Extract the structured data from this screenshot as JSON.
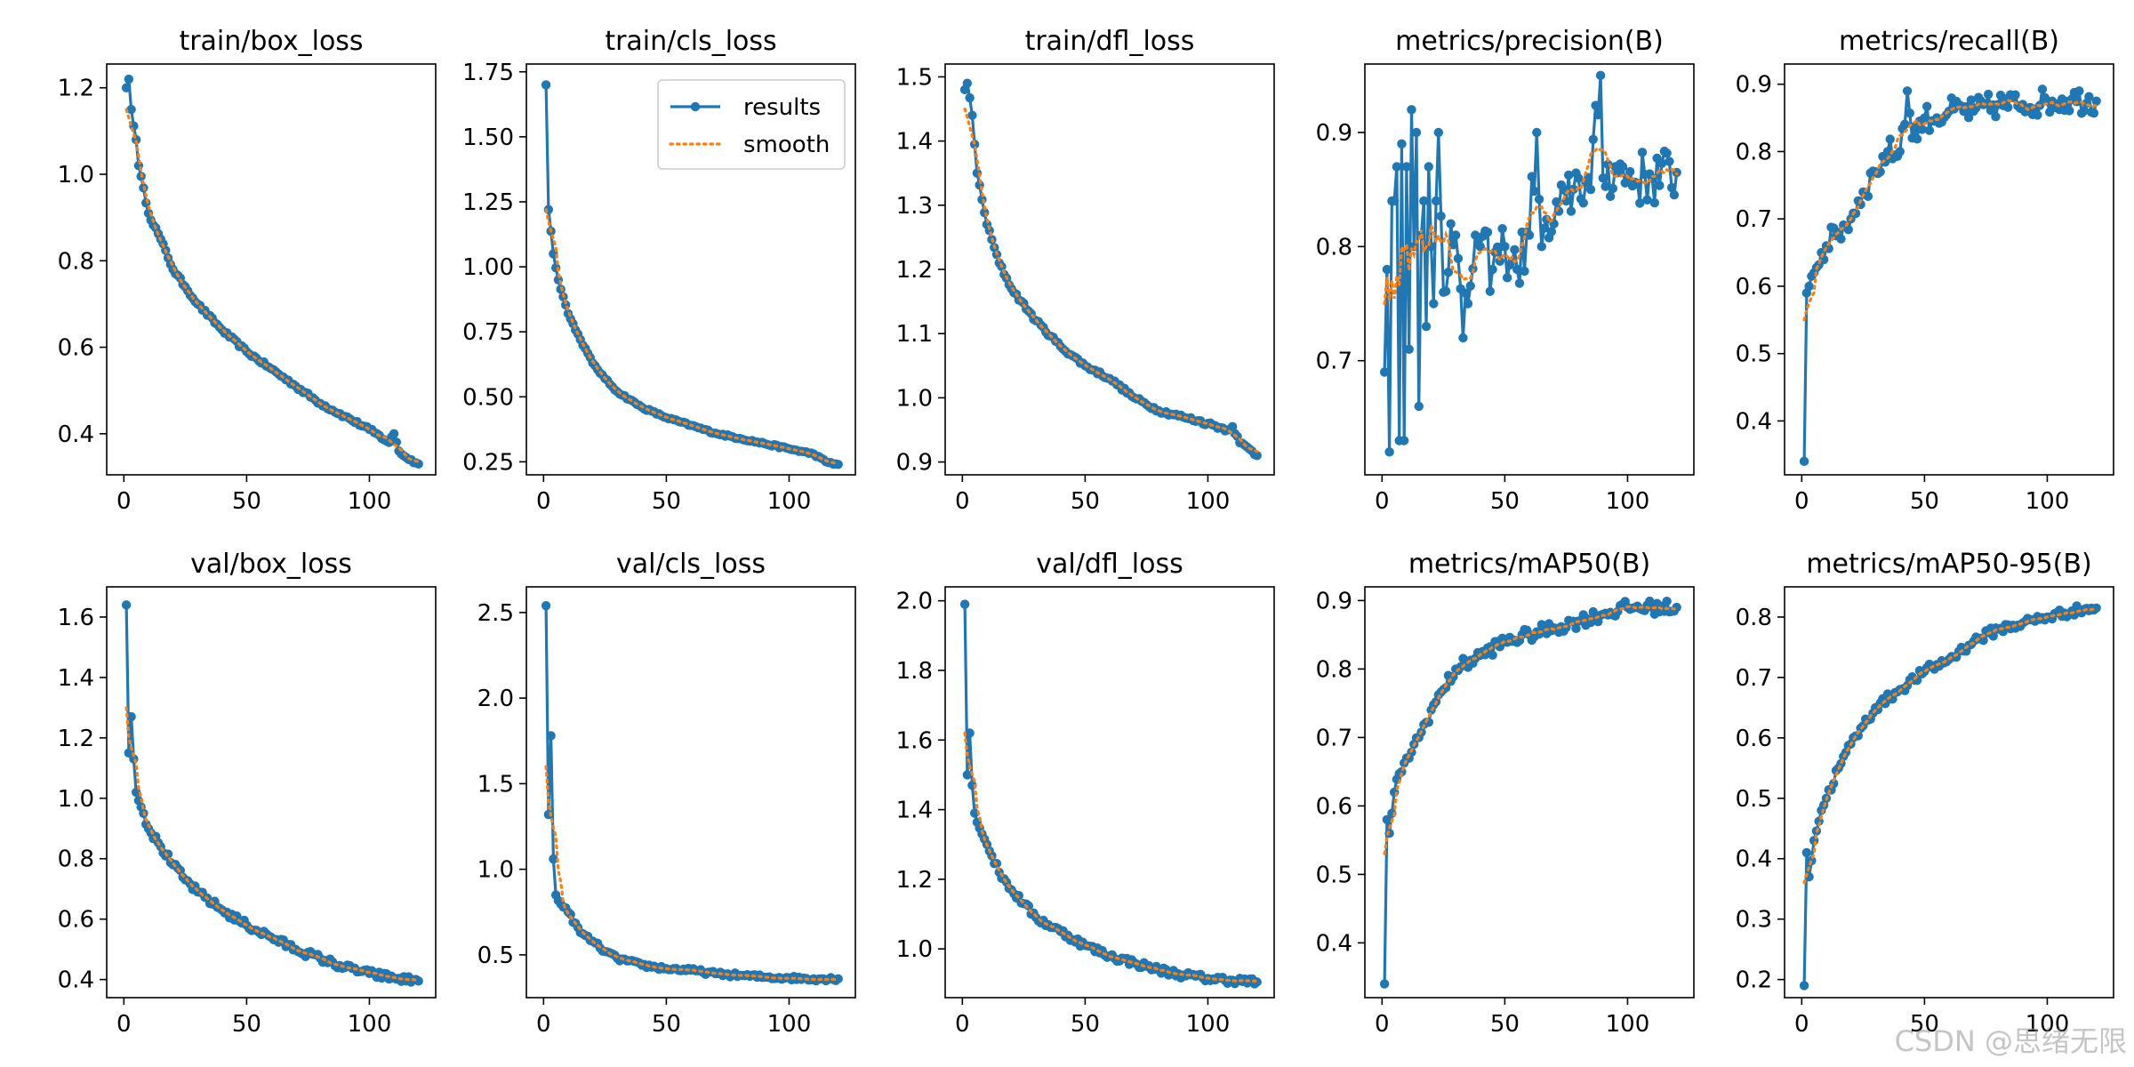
{
  "figure": {
    "watermark": "CSDN @思绪无限",
    "legend": {
      "results": "results",
      "smooth": "smooth"
    }
  },
  "colors": {
    "results": "#1f77b4",
    "smooth": "#ff7f0e",
    "axis": "#000000",
    "background": "#ffffff"
  },
  "chart_data": [
    {
      "type": "line",
      "title": "train/box_loss",
      "xlim": [
        -7,
        127
      ],
      "ylim": [
        0.305,
        1.255
      ],
      "xticks": [
        0,
        50,
        100
      ],
      "xtick_labels": [
        "0",
        "50",
        "100"
      ],
      "yticks": [
        0.4,
        0.6,
        0.8,
        1.0,
        1.2
      ],
      "ytick_labels": [
        "0.4",
        "0.6",
        "0.8",
        "1.0",
        "1.2"
      ],
      "epochs": 120,
      "smooth_start": 1.15,
      "anchors": [
        [
          1,
          1.2
        ],
        [
          2,
          1.22
        ],
        [
          3,
          1.15
        ],
        [
          5,
          1.08
        ],
        [
          6,
          1.02
        ],
        [
          10,
          0.91
        ],
        [
          15,
          0.85
        ],
        [
          20,
          0.78
        ],
        [
          25,
          0.74
        ],
        [
          30,
          0.7
        ],
        [
          40,
          0.64
        ],
        [
          50,
          0.59
        ],
        [
          60,
          0.55
        ],
        [
          70,
          0.51
        ],
        [
          80,
          0.47
        ],
        [
          90,
          0.44
        ],
        [
          100,
          0.41
        ],
        [
          108,
          0.38
        ],
        [
          110,
          0.4
        ],
        [
          112,
          0.36
        ],
        [
          115,
          0.345
        ],
        [
          120,
          0.33
        ]
      ],
      "noise": 0.004
    },
    {
      "type": "line",
      "title": "train/cls_loss",
      "xlim": [
        -7,
        127
      ],
      "ylim": [
        0.2,
        1.78
      ],
      "xticks": [
        0,
        50,
        100
      ],
      "xtick_labels": [
        "0",
        "50",
        "100"
      ],
      "yticks": [
        0.25,
        0.5,
        0.75,
        1.0,
        1.25,
        1.5,
        1.75
      ],
      "ytick_labels": [
        "0.25",
        "0.50",
        "0.75",
        "1.00",
        "1.25",
        "1.50",
        "1.75"
      ],
      "epochs": 120,
      "smooth_start": 1.22,
      "legend": true,
      "anchors": [
        [
          1,
          1.7
        ],
        [
          2,
          1.22
        ],
        [
          4,
          1.05
        ],
        [
          6,
          0.95
        ],
        [
          10,
          0.82
        ],
        [
          15,
          0.72
        ],
        [
          20,
          0.63
        ],
        [
          25,
          0.57
        ],
        [
          30,
          0.52
        ],
        [
          40,
          0.46
        ],
        [
          50,
          0.42
        ],
        [
          60,
          0.39
        ],
        [
          70,
          0.36
        ],
        [
          80,
          0.34
        ],
        [
          90,
          0.32
        ],
        [
          100,
          0.3
        ],
        [
          110,
          0.28
        ],
        [
          115,
          0.25
        ],
        [
          120,
          0.24
        ]
      ],
      "noise": 0.004
    },
    {
      "type": "line",
      "title": "train/dfl_loss",
      "xlim": [
        -7,
        127
      ],
      "ylim": [
        0.88,
        1.52
      ],
      "xticks": [
        0,
        50,
        100
      ],
      "xtick_labels": [
        "0",
        "50",
        "100"
      ],
      "yticks": [
        0.9,
        1.0,
        1.1,
        1.2,
        1.3,
        1.4,
        1.5
      ],
      "ytick_labels": [
        "0.9",
        "1.0",
        "1.1",
        "1.2",
        "1.3",
        "1.4",
        "1.5"
      ],
      "epochs": 120,
      "smooth_start": 1.45,
      "anchors": [
        [
          1,
          1.48
        ],
        [
          2,
          1.49
        ],
        [
          4,
          1.44
        ],
        [
          6,
          1.35
        ],
        [
          10,
          1.27
        ],
        [
          15,
          1.21
        ],
        [
          20,
          1.17
        ],
        [
          30,
          1.12
        ],
        [
          40,
          1.08
        ],
        [
          50,
          1.05
        ],
        [
          60,
          1.03
        ],
        [
          70,
          1.0
        ],
        [
          80,
          0.98
        ],
        [
          90,
          0.97
        ],
        [
          100,
          0.96
        ],
        [
          108,
          0.95
        ],
        [
          110,
          0.955
        ],
        [
          113,
          0.93
        ],
        [
          117,
          0.92
        ],
        [
          120,
          0.91
        ]
      ],
      "noise": 0.003
    },
    {
      "type": "line",
      "title": "metrics/precision(B)",
      "xlim": [
        -7,
        127
      ],
      "ylim": [
        0.6,
        0.96
      ],
      "xticks": [
        0,
        50,
        100
      ],
      "xtick_labels": [
        "0",
        "50",
        "100"
      ],
      "yticks": [
        0.7,
        0.8,
        0.9
      ],
      "ytick_labels": [
        "0.7",
        "0.8",
        "0.9"
      ],
      "epochs": 120,
      "smooth_start": 0.75,
      "anchors": [
        [
          1,
          0.69
        ],
        [
          2,
          0.78
        ],
        [
          3,
          0.62
        ],
        [
          4,
          0.84
        ],
        [
          5,
          0.84
        ],
        [
          6,
          0.87
        ],
        [
          7,
          0.63
        ],
        [
          8,
          0.89
        ],
        [
          9,
          0.63
        ],
        [
          10,
          0.87
        ],
        [
          11,
          0.71
        ],
        [
          12,
          0.92
        ],
        [
          13,
          0.8
        ],
        [
          14,
          0.9
        ],
        [
          15,
          0.66
        ],
        [
          16,
          0.81
        ],
        [
          17,
          0.84
        ],
        [
          18,
          0.73
        ],
        [
          19,
          0.87
        ],
        [
          20,
          0.8
        ],
        [
          21,
          0.75
        ],
        [
          22,
          0.84
        ],
        [
          23,
          0.9
        ],
        [
          25,
          0.76
        ],
        [
          28,
          0.82
        ],
        [
          30,
          0.81
        ],
        [
          33,
          0.72
        ],
        [
          35,
          0.75
        ],
        [
          38,
          0.81
        ],
        [
          40,
          0.8
        ],
        [
          45,
          0.78
        ],
        [
          50,
          0.8
        ],
        [
          55,
          0.78
        ],
        [
          60,
          0.81
        ],
        [
          63,
          0.9
        ],
        [
          65,
          0.8
        ],
        [
          70,
          0.82
        ],
        [
          75,
          0.84
        ],
        [
          80,
          0.86
        ],
        [
          85,
          0.85
        ],
        [
          89,
          0.95
        ],
        [
          90,
          0.86
        ],
        [
          95,
          0.87
        ],
        [
          100,
          0.86
        ],
        [
          110,
          0.86
        ],
        [
          120,
          0.865
        ]
      ],
      "noise": 0.025
    },
    {
      "type": "line",
      "title": "metrics/recall(B)",
      "xlim": [
        -7,
        127
      ],
      "ylim": [
        0.32,
        0.93
      ],
      "xticks": [
        0,
        50,
        100
      ],
      "xtick_labels": [
        "0",
        "50",
        "100"
      ],
      "yticks": [
        0.4,
        0.5,
        0.6,
        0.7,
        0.8,
        0.9
      ],
      "ytick_labels": [
        "0.4",
        "0.5",
        "0.6",
        "0.7",
        "0.8",
        "0.9"
      ],
      "epochs": 120,
      "smooth_start": 0.55,
      "anchors": [
        [
          1,
          0.34
        ],
        [
          2,
          0.59
        ],
        [
          3,
          0.6
        ],
        [
          5,
          0.62
        ],
        [
          8,
          0.65
        ],
        [
          10,
          0.66
        ],
        [
          15,
          0.68
        ],
        [
          20,
          0.7
        ],
        [
          25,
          0.74
        ],
        [
          30,
          0.77
        ],
        [
          35,
          0.8
        ],
        [
          40,
          0.8
        ],
        [
          43,
          0.89
        ],
        [
          45,
          0.82
        ],
        [
          50,
          0.85
        ],
        [
          55,
          0.85
        ],
        [
          60,
          0.86
        ],
        [
          70,
          0.86
        ],
        [
          80,
          0.87
        ],
        [
          90,
          0.87
        ],
        [
          100,
          0.875
        ],
        [
          110,
          0.878
        ],
        [
          120,
          0.875
        ]
      ],
      "noise": 0.02
    },
    {
      "type": "line",
      "title": "val/box_loss",
      "xlim": [
        -7,
        127
      ],
      "ylim": [
        0.34,
        1.7
      ],
      "xticks": [
        0,
        50,
        100
      ],
      "xtick_labels": [
        "0",
        "50",
        "100"
      ],
      "yticks": [
        0.4,
        0.6,
        0.8,
        1.0,
        1.2,
        1.4,
        1.6
      ],
      "ytick_labels": [
        "0.4",
        "0.6",
        "0.8",
        "1.0",
        "1.2",
        "1.4",
        "1.6"
      ],
      "epochs": 120,
      "smooth_start": 1.3,
      "anchors": [
        [
          1,
          1.64
        ],
        [
          2,
          1.15
        ],
        [
          3,
          1.27
        ],
        [
          4,
          1.13
        ],
        [
          5,
          1.02
        ],
        [
          8,
          0.95
        ],
        [
          10,
          0.9
        ],
        [
          15,
          0.84
        ],
        [
          20,
          0.78
        ],
        [
          25,
          0.73
        ],
        [
          30,
          0.69
        ],
        [
          40,
          0.63
        ],
        [
          50,
          0.58
        ],
        [
          60,
          0.54
        ],
        [
          70,
          0.5
        ],
        [
          80,
          0.47
        ],
        [
          90,
          0.44
        ],
        [
          100,
          0.42
        ],
        [
          110,
          0.405
        ],
        [
          120,
          0.395
        ]
      ],
      "noise": 0.012
    },
    {
      "type": "line",
      "title": "val/cls_loss",
      "xlim": [
        -7,
        127
      ],
      "ylim": [
        0.25,
        2.65
      ],
      "xticks": [
        0,
        50,
        100
      ],
      "xtick_labels": [
        "0",
        "50",
        "100"
      ],
      "yticks": [
        0.5,
        1.0,
        1.5,
        2.0,
        2.5
      ],
      "ytick_labels": [
        "0.5",
        "1.0",
        "1.5",
        "2.0",
        "2.5"
      ],
      "epochs": 120,
      "smooth_start": 1.6,
      "anchors": [
        [
          1,
          2.54
        ],
        [
          2,
          1.32
        ],
        [
          3,
          1.78
        ],
        [
          4,
          1.06
        ],
        [
          5,
          0.85
        ],
        [
          8,
          0.78
        ],
        [
          10,
          0.75
        ],
        [
          15,
          0.63
        ],
        [
          20,
          0.58
        ],
        [
          25,
          0.52
        ],
        [
          30,
          0.48
        ],
        [
          40,
          0.44
        ],
        [
          50,
          0.42
        ],
        [
          60,
          0.41
        ],
        [
          70,
          0.39
        ],
        [
          80,
          0.38
        ],
        [
          90,
          0.37
        ],
        [
          100,
          0.365
        ],
        [
          110,
          0.36
        ],
        [
          120,
          0.36
        ]
      ],
      "noise": 0.012
    },
    {
      "type": "line",
      "title": "val/dfl_loss",
      "xlim": [
        -7,
        127
      ],
      "ylim": [
        0.86,
        2.04
      ],
      "xticks": [
        0,
        50,
        100
      ],
      "xtick_labels": [
        "0",
        "50",
        "100"
      ],
      "yticks": [
        1.0,
        1.2,
        1.4,
        1.6,
        1.8,
        2.0
      ],
      "ytick_labels": [
        "1.0",
        "1.2",
        "1.4",
        "1.6",
        "1.8",
        "2.0"
      ],
      "epochs": 120,
      "smooth_start": 1.62,
      "anchors": [
        [
          1,
          1.99
        ],
        [
          2,
          1.5
        ],
        [
          3,
          1.62
        ],
        [
          4,
          1.47
        ],
        [
          5,
          1.39
        ],
        [
          8,
          1.33
        ],
        [
          10,
          1.3
        ],
        [
          15,
          1.22
        ],
        [
          20,
          1.17
        ],
        [
          25,
          1.13
        ],
        [
          30,
          1.09
        ],
        [
          40,
          1.05
        ],
        [
          50,
          1.01
        ],
        [
          60,
          0.98
        ],
        [
          70,
          0.96
        ],
        [
          80,
          0.94
        ],
        [
          90,
          0.925
        ],
        [
          100,
          0.915
        ],
        [
          110,
          0.91
        ],
        [
          120,
          0.905
        ]
      ],
      "noise": 0.01
    },
    {
      "type": "line",
      "title": "metrics/mAP50(B)",
      "xlim": [
        -7,
        127
      ],
      "ylim": [
        0.32,
        0.92
      ],
      "xticks": [
        0,
        50,
        100
      ],
      "xtick_labels": [
        "0",
        "50",
        "100"
      ],
      "yticks": [
        0.4,
        0.5,
        0.6,
        0.7,
        0.8,
        0.9
      ],
      "ytick_labels": [
        "0.4",
        "0.5",
        "0.6",
        "0.7",
        "0.8",
        "0.9"
      ],
      "epochs": 120,
      "smooth_start": 0.53,
      "anchors": [
        [
          1,
          0.34
        ],
        [
          2,
          0.58
        ],
        [
          3,
          0.56
        ],
        [
          5,
          0.62
        ],
        [
          8,
          0.65
        ],
        [
          10,
          0.67
        ],
        [
          15,
          0.7
        ],
        [
          20,
          0.74
        ],
        [
          25,
          0.77
        ],
        [
          30,
          0.8
        ],
        [
          40,
          0.82
        ],
        [
          50,
          0.84
        ],
        [
          60,
          0.85
        ],
        [
          70,
          0.86
        ],
        [
          80,
          0.87
        ],
        [
          90,
          0.88
        ],
        [
          100,
          0.89
        ],
        [
          110,
          0.89
        ],
        [
          120,
          0.89
        ]
      ],
      "noise": 0.01
    },
    {
      "type": "line",
      "title": "metrics/mAP50-95(B)",
      "xlim": [
        -7,
        127
      ],
      "ylim": [
        0.17,
        0.85
      ],
      "xticks": [
        0,
        50,
        100
      ],
      "xtick_labels": [
        "0",
        "50",
        "100"
      ],
      "yticks": [
        0.2,
        0.3,
        0.4,
        0.5,
        0.6,
        0.7,
        0.8
      ],
      "ytick_labels": [
        "0.2",
        "0.3",
        "0.4",
        "0.5",
        "0.6",
        "0.7",
        "0.8"
      ],
      "epochs": 120,
      "smooth_start": 0.36,
      "anchors": [
        [
          1,
          0.19
        ],
        [
          2,
          0.41
        ],
        [
          3,
          0.37
        ],
        [
          5,
          0.43
        ],
        [
          8,
          0.48
        ],
        [
          10,
          0.5
        ],
        [
          15,
          0.55
        ],
        [
          20,
          0.59
        ],
        [
          25,
          0.62
        ],
        [
          30,
          0.65
        ],
        [
          40,
          0.68
        ],
        [
          50,
          0.71
        ],
        [
          60,
          0.73
        ],
        [
          70,
          0.76
        ],
        [
          80,
          0.78
        ],
        [
          90,
          0.79
        ],
        [
          100,
          0.8
        ],
        [
          110,
          0.81
        ],
        [
          120,
          0.815
        ]
      ],
      "noise": 0.008
    }
  ]
}
